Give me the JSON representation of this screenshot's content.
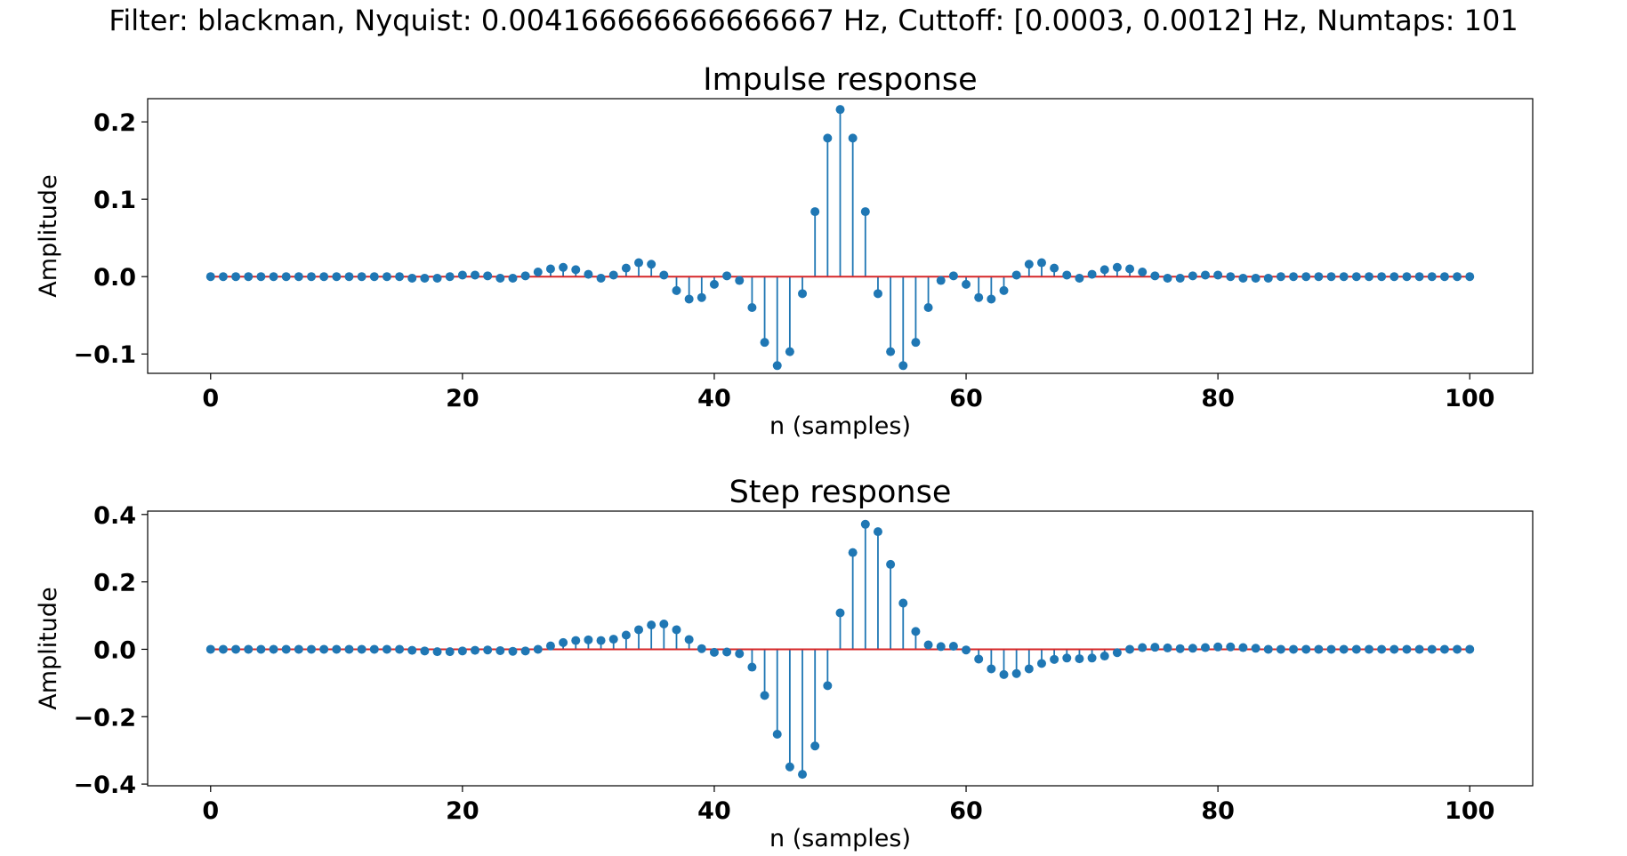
{
  "suptitle": "Filter: blackman, Nyquist: 0.004166666666666667 Hz, Cuttoff: [0.0003, 0.0012] Hz, Numtaps: 101",
  "colors": {
    "stem": "#1f77b4",
    "baseline": "#d62728",
    "axes": "#000000"
  },
  "chart_data": [
    {
      "type": "stem",
      "title": "Impulse response",
      "xlabel": "n (samples)",
      "ylabel": "Amplitude",
      "xlim": [
        -5,
        105
      ],
      "ylim": [
        -0.125,
        0.23
      ],
      "xticks": [
        0,
        20,
        40,
        60,
        80,
        100
      ],
      "xtick_labels": [
        "0",
        "20",
        "40",
        "60",
        "80",
        "100"
      ],
      "yticks": [
        -0.1,
        0.0,
        0.1,
        0.2
      ],
      "ytick_labels": [
        "−0.1",
        "0.0",
        "0.1",
        "0.2"
      ],
      "grid": false,
      "x_start": 0,
      "values": [
        0,
        0,
        0,
        0,
        0,
        0,
        0,
        0,
        0,
        0,
        0,
        0,
        0,
        0,
        0,
        0,
        -0.002,
        -0.002,
        -0.002,
        0,
        0.002,
        0.002,
        0.001,
        -0.002,
        -0.002,
        0.001,
        0.006,
        0.01,
        0.012,
        0.009,
        0.003,
        -0.002,
        0.002,
        0.011,
        0.018,
        0.016,
        0.002,
        -0.018,
        -0.029,
        -0.027,
        -0.01,
        0.001,
        -0.005,
        -0.04,
        -0.085,
        -0.115,
        -0.097,
        -0.022,
        0.084,
        0.179,
        0.216,
        0.179,
        0.084,
        -0.022,
        -0.097,
        -0.115,
        -0.085,
        -0.04,
        -0.005,
        0.001,
        -0.01,
        -0.027,
        -0.029,
        -0.018,
        0.002,
        0.016,
        0.018,
        0.011,
        0.002,
        -0.002,
        0.003,
        0.009,
        0.012,
        0.01,
        0.006,
        0.001,
        -0.002,
        -0.002,
        0.001,
        0.002,
        0.002,
        0,
        -0.002,
        -0.002,
        -0.002,
        0,
        0,
        0,
        0,
        0,
        0,
        0,
        0,
        0,
        0,
        0,
        0,
        0,
        0,
        0,
        0
      ]
    },
    {
      "type": "stem",
      "title": "Step response",
      "xlabel": "n (samples)",
      "ylabel": "Amplitude",
      "xlim": [
        -5,
        105
      ],
      "ylim": [
        -0.405,
        0.41
      ],
      "xticks": [
        0,
        20,
        40,
        60,
        80,
        100
      ],
      "xtick_labels": [
        "0",
        "20",
        "40",
        "60",
        "80",
        "100"
      ],
      "yticks": [
        -0.4,
        -0.2,
        0.0,
        0.2,
        0.4
      ],
      "ytick_labels": [
        "−0.4",
        "−0.2",
        "0.0",
        "0.2",
        "0.4"
      ],
      "grid": false,
      "x_start": 0,
      "values": [
        0,
        0,
        0,
        0,
        0,
        0,
        0,
        0,
        0,
        0,
        0,
        0,
        0,
        0,
        0,
        0,
        -0.003,
        -0.005,
        -0.007,
        -0.007,
        -0.005,
        -0.003,
        -0.002,
        -0.004,
        -0.006,
        -0.005,
        0,
        0.01,
        0.02,
        0.026,
        0.028,
        0.026,
        0.03,
        0.042,
        0.058,
        0.072,
        0.075,
        0.058,
        0.029,
        0.002,
        -0.009,
        -0.008,
        -0.013,
        -0.053,
        -0.137,
        -0.252,
        -0.349,
        -0.371,
        -0.287,
        -0.108,
        0.108,
        0.287,
        0.371,
        0.349,
        0.252,
        0.137,
        0.053,
        0.013,
        0.008,
        0.009,
        -0.002,
        -0.029,
        -0.058,
        -0.075,
        -0.072,
        -0.058,
        -0.042,
        -0.03,
        -0.026,
        -0.028,
        -0.026,
        -0.02,
        -0.01,
        0,
        0.005,
        0.006,
        0.004,
        0.002,
        0.003,
        0.005,
        0.007,
        0.007,
        0.005,
        0.003,
        0,
        0,
        0,
        0,
        0,
        0,
        0,
        0,
        0,
        0,
        0,
        0,
        0,
        0,
        0,
        0,
        0
      ]
    }
  ]
}
